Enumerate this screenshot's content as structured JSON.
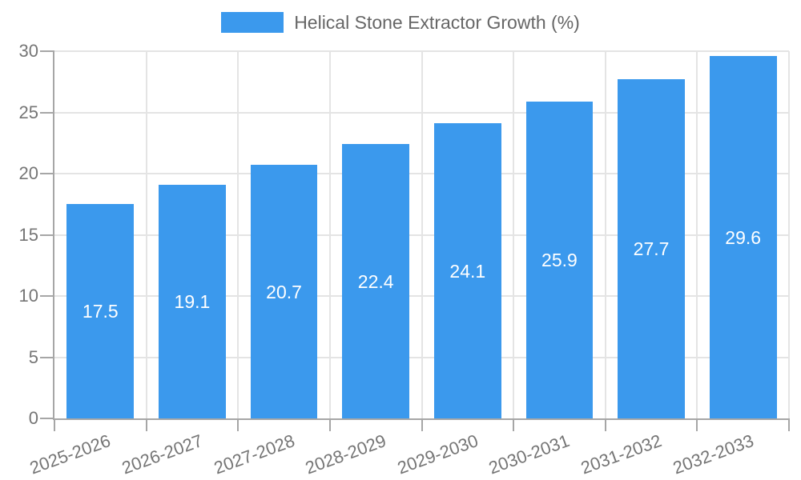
{
  "legend": {
    "label": "Helical Stone Extractor Growth (%)"
  },
  "chart_data": {
    "type": "bar",
    "title": "Helical Stone Extractor Growth (%)",
    "legend_position": "top",
    "categories": [
      "2025-2026",
      "2026-2027",
      "2027-2028",
      "2028-2029",
      "2029-2030",
      "2030-2031",
      "2031-2032",
      "2032-2033"
    ],
    "values": [
      17.5,
      19.1,
      20.7,
      22.4,
      24.1,
      25.9,
      27.7,
      29.6
    ],
    "value_labels_shown": true,
    "xlabel": "",
    "ylabel": "",
    "ylim": [
      0,
      30
    ],
    "yticks": [
      0,
      5,
      10,
      15,
      20,
      25,
      30
    ],
    "grid": true,
    "bar_color": "#3b99ed",
    "value_label_color": "#ffffff"
  }
}
